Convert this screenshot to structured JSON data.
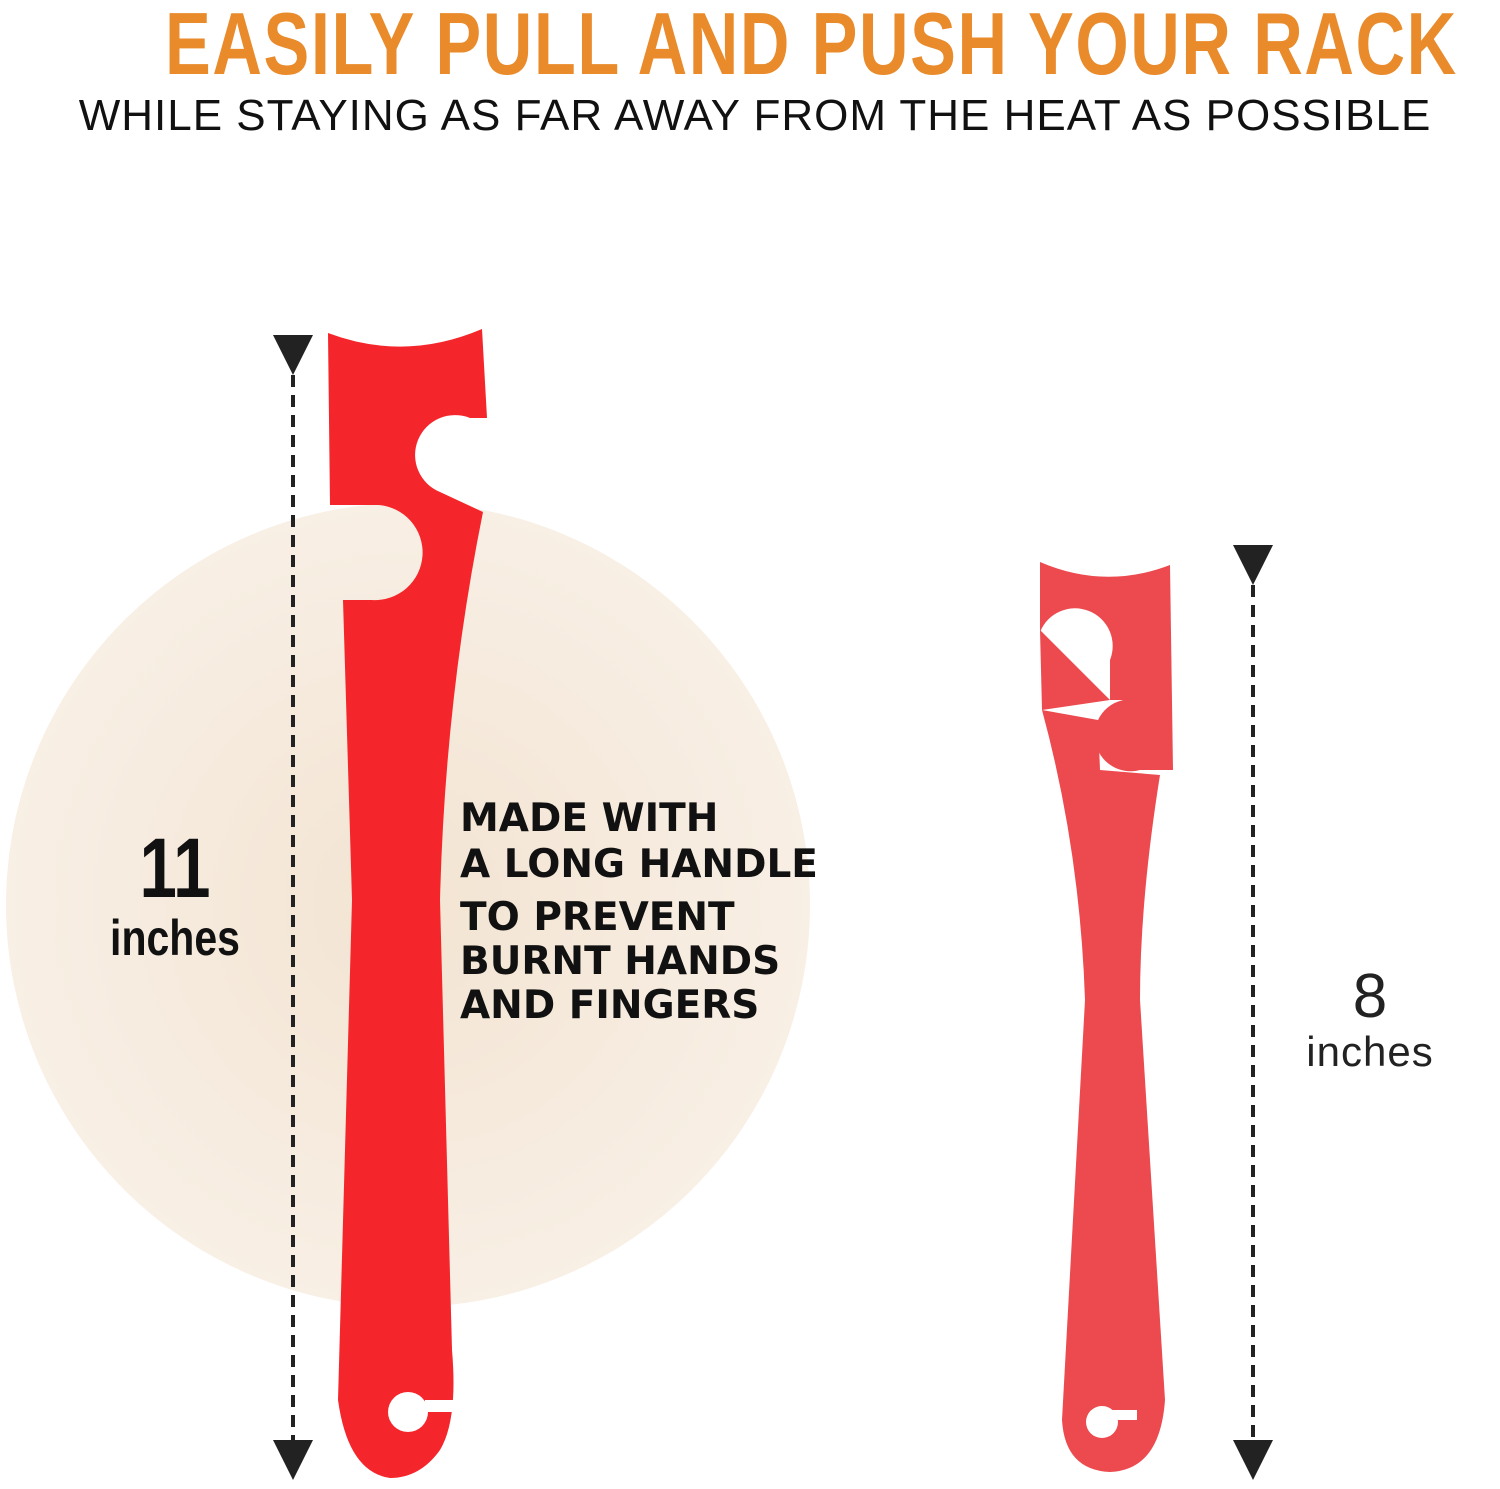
{
  "headline": "EASILY PULL AND PUSH YOUR RACK",
  "subheadline": "WHILE STAYING AS FAR AWAY FROM THE HEAT AS POSSIBLE",
  "large_tool": {
    "length_value": "11",
    "length_unit": "inches",
    "color": "#f5262b"
  },
  "small_tool": {
    "length_value": "8",
    "length_unit": "inches",
    "color": "#ec4a4e"
  },
  "feature_text": [
    "MADE WITH",
    "A LONG HANDLE",
    "TO PREVENT",
    "BURNT HANDS",
    "AND FINGERS"
  ],
  "colors": {
    "headline": "#e98a2b",
    "backdrop_circle": "#f6eadc"
  }
}
